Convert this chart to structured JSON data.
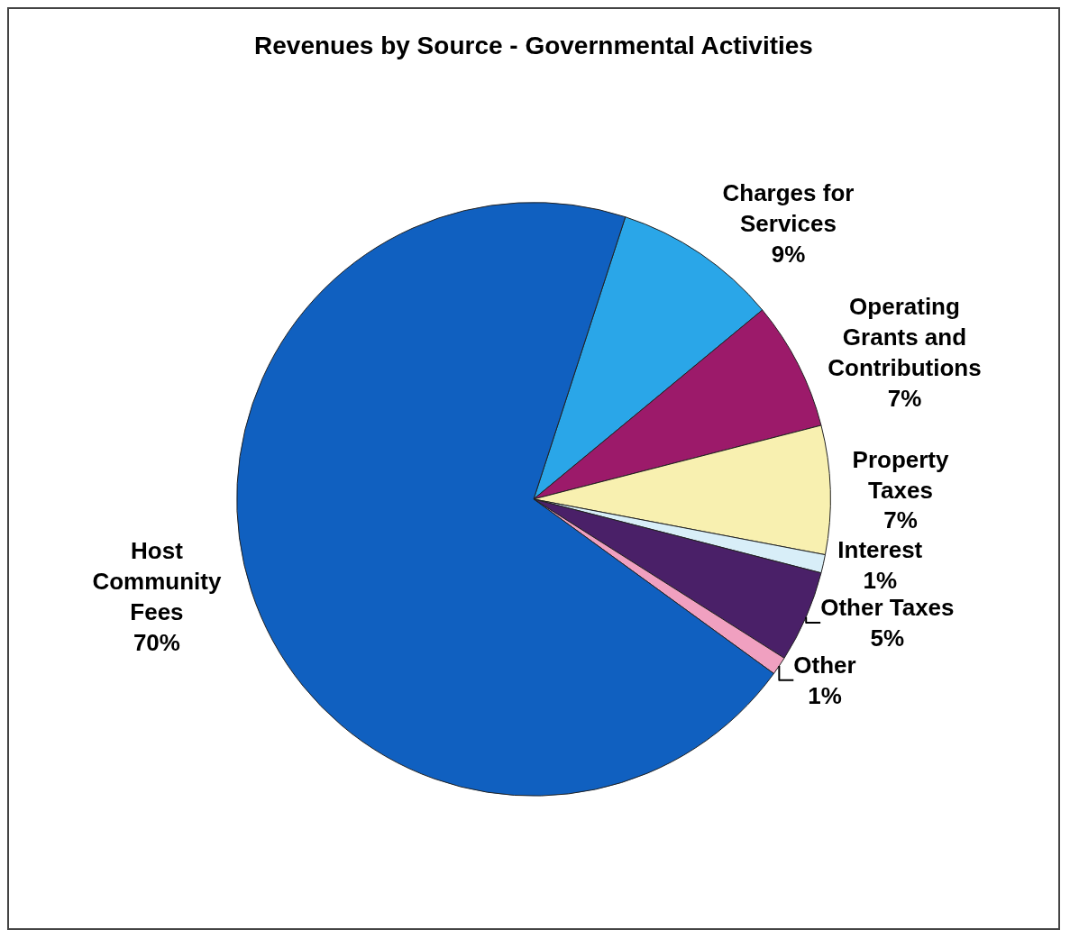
{
  "chart_data": {
    "type": "pie",
    "title": "Revenues by Source - Governmental Activities",
    "categories": [
      "Charges for Services",
      "Operating Grants and Contributions",
      "Property Taxes",
      "Interest",
      "Other Taxes",
      "Other",
      "Host Community Fees"
    ],
    "values": [
      9,
      7,
      7,
      1,
      5,
      1,
      70
    ],
    "value_labels": [
      "9%",
      "7%",
      "7%",
      "1%",
      "5%",
      "1%",
      "70%"
    ],
    "colors": [
      "#2aa6e8",
      "#9c1a6a",
      "#f8f0b0",
      "#d8eef8",
      "#4a2068",
      "#f0a0c0",
      "#1060c0"
    ],
    "legend": false
  }
}
